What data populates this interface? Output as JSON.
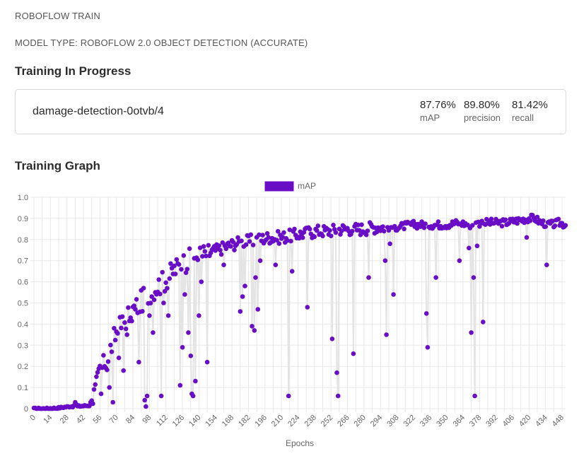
{
  "header": {
    "app_title": "ROBOFLOW TRAIN",
    "model_type": "MODEL TYPE: ROBOFLOW 2.0 OBJECT DETECTION (ACCURATE)"
  },
  "training": {
    "heading": "Training In Progress",
    "model_name": "damage-detection-0otvb/4",
    "metrics": [
      {
        "value": "87.76%",
        "label": "mAP"
      },
      {
        "value": "89.80%",
        "label": "precision"
      },
      {
        "value": "81.42%",
        "label": "recall"
      }
    ]
  },
  "graph": {
    "heading": "Training Graph"
  },
  "colors": {
    "series": "#6a0dc6",
    "line": "#e4e4e4",
    "grid": "#e8e8e8"
  },
  "chart_data": {
    "type": "line",
    "title": "",
    "xlabel": "Epochs",
    "ylabel": "",
    "legend": "mAP",
    "ylim": [
      0,
      1.0
    ],
    "xlim": [
      0,
      451
    ],
    "yticks": [
      0,
      0.1,
      0.2,
      0.3,
      0.4,
      0.5,
      0.6,
      0.7,
      0.8,
      0.9,
      1.0
    ],
    "ytick_labels": [
      "0",
      "0.1",
      "0.2",
      "0.3",
      "0.4",
      "0.5",
      "0.6",
      "0.7",
      "0.8",
      "0.9",
      "1.0"
    ],
    "xticks": [
      0,
      7,
      14,
      21,
      28,
      35,
      42,
      49,
      56,
      63,
      70,
      77,
      84,
      91,
      98,
      105,
      112,
      119,
      126,
      133,
      140,
      147,
      154,
      161,
      168,
      175,
      182,
      189,
      196,
      203,
      210,
      217,
      224,
      231,
      238,
      245,
      252,
      259,
      266,
      273,
      280,
      287,
      294,
      301,
      308,
      315,
      322,
      329,
      336,
      343,
      350,
      357,
      364,
      371,
      378,
      385,
      392,
      399,
      406,
      413,
      420,
      427,
      434,
      441,
      448
    ],
    "xtick_labels": [
      "0",
      "",
      "14",
      "",
      "28",
      "",
      "42",
      "",
      "56",
      "",
      "70",
      "",
      "84",
      "",
      "98",
      "",
      "112",
      "",
      "126",
      "",
      "140",
      "",
      "154",
      "",
      "168",
      "",
      "182",
      "",
      "196",
      "",
      "210",
      "",
      "224",
      "",
      "238",
      "",
      "252",
      "",
      "266",
      "",
      "280",
      "",
      "294",
      "",
      "308",
      "",
      "322",
      "",
      "336",
      "",
      "350",
      "",
      "364",
      "",
      "378",
      "",
      "392",
      "",
      "406",
      "",
      "420",
      "",
      "434",
      "",
      "448"
    ],
    "anchors": [
      [
        0,
        0.0
      ],
      [
        10,
        0.0
      ],
      [
        20,
        0.003
      ],
      [
        30,
        0.01
      ],
      [
        40,
        0.012
      ],
      [
        47,
        0.015
      ],
      [
        52,
        0.08
      ],
      [
        56,
        0.18
      ],
      [
        62,
        0.22
      ],
      [
        66,
        0.3
      ],
      [
        70,
        0.36
      ],
      [
        75,
        0.4
      ],
      [
        80,
        0.44
      ],
      [
        85,
        0.47
      ],
      [
        90,
        0.5
      ],
      [
        95,
        0.53
      ],
      [
        100,
        0.56
      ],
      [
        105,
        0.58
      ],
      [
        110,
        0.6
      ],
      [
        115,
        0.63
      ],
      [
        120,
        0.66
      ],
      [
        125,
        0.68
      ],
      [
        130,
        0.7
      ],
      [
        135,
        0.71
      ],
      [
        140,
        0.72
      ],
      [
        145,
        0.73
      ],
      [
        150,
        0.74
      ],
      [
        155,
        0.75
      ],
      [
        160,
        0.76
      ],
      [
        170,
        0.78
      ],
      [
        180,
        0.79
      ],
      [
        190,
        0.8
      ],
      [
        200,
        0.81
      ],
      [
        210,
        0.81
      ],
      [
        220,
        0.82
      ],
      [
        230,
        0.83
      ],
      [
        240,
        0.84
      ],
      [
        250,
        0.84
      ],
      [
        260,
        0.85
      ],
      [
        270,
        0.85
      ],
      [
        280,
        0.85
      ],
      [
        290,
        0.86
      ],
      [
        300,
        0.86
      ],
      [
        310,
        0.86
      ],
      [
        320,
        0.87
      ],
      [
        330,
        0.87
      ],
      [
        340,
        0.87
      ],
      [
        350,
        0.87
      ],
      [
        360,
        0.88
      ],
      [
        370,
        0.87
      ],
      [
        380,
        0.88
      ],
      [
        390,
        0.88
      ],
      [
        400,
        0.88
      ],
      [
        410,
        0.89
      ],
      [
        420,
        0.9
      ],
      [
        425,
        0.9
      ],
      [
        430,
        0.88
      ],
      [
        440,
        0.87
      ],
      [
        445,
        0.88
      ],
      [
        451,
        0.87
      ]
    ],
    "drops": [
      [
        35,
        0.03
      ],
      [
        36,
        0.02
      ],
      [
        57,
        0.07
      ],
      [
        60,
        0.2
      ],
      [
        64,
        0.1
      ],
      [
        67,
        0.03
      ],
      [
        72,
        0.24
      ],
      [
        76,
        0.18
      ],
      [
        79,
        0.35
      ],
      [
        82,
        0.43
      ],
      [
        86,
        0.47
      ],
      [
        89,
        0.22
      ],
      [
        94,
        0.04
      ],
      [
        95,
        0.01
      ],
      [
        96,
        0.06
      ],
      [
        98,
        0.44
      ],
      [
        101,
        0.36
      ],
      [
        103,
        0.55
      ],
      [
        108,
        0.06
      ],
      [
        110,
        0.5
      ],
      [
        114,
        0.44
      ],
      [
        124,
        0.11
      ],
      [
        126,
        0.29
      ],
      [
        128,
        0.54
      ],
      [
        131,
        0.36
      ],
      [
        133,
        0.25
      ],
      [
        134,
        0.07
      ],
      [
        135,
        0.06
      ],
      [
        137,
        0.13
      ],
      [
        140,
        0.44
      ],
      [
        142,
        0.6
      ],
      [
        147,
        0.22
      ],
      [
        161,
        0.68
      ],
      [
        175,
        0.46
      ],
      [
        177,
        0.53
      ],
      [
        179,
        0.58
      ],
      [
        185,
        0.39
      ],
      [
        187,
        0.37
      ],
      [
        188,
        0.62
      ],
      [
        190,
        0.47
      ],
      [
        192,
        0.7
      ],
      [
        205,
        0.68
      ],
      [
        216,
        0.06
      ],
      [
        219,
        0.65
      ],
      [
        232,
        0.48
      ],
      [
        253,
        0.33
      ],
      [
        257,
        0.17
      ],
      [
        258,
        0.06
      ],
      [
        271,
        0.26
      ],
      [
        284,
        0.62
      ],
      [
        298,
        0.7
      ],
      [
        299,
        0.35
      ],
      [
        302,
        0.78
      ],
      [
        305,
        0.54
      ],
      [
        333,
        0.45
      ],
      [
        334,
        0.29
      ],
      [
        341,
        0.62
      ],
      [
        361,
        0.7
      ],
      [
        369,
        0.76
      ],
      [
        371,
        0.36
      ],
      [
        373,
        0.62
      ],
      [
        374,
        0.06
      ],
      [
        376,
        0.77
      ],
      [
        381,
        0.41
      ],
      [
        418,
        0.81
      ],
      [
        435,
        0.68
      ]
    ]
  }
}
